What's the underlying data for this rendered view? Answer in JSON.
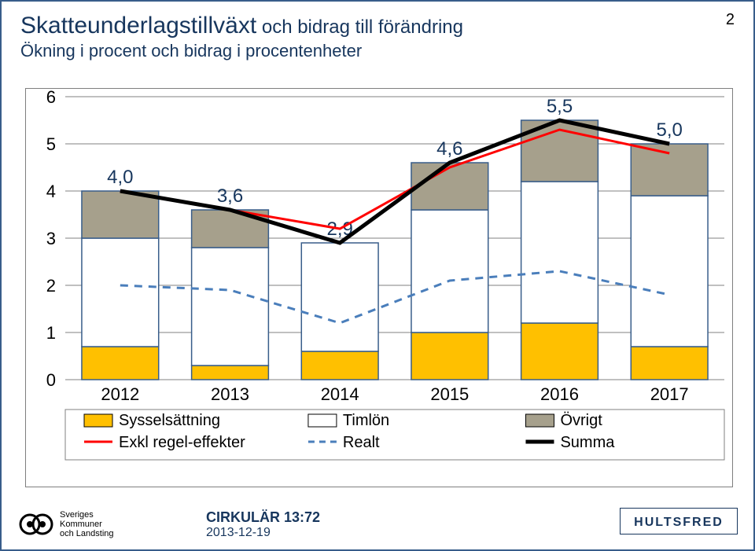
{
  "page_number": "2",
  "title_main": "Skatteunderlagstillväxt",
  "title_rest": " och bidrag till förändring",
  "subtitle": "Ökning i procent och bidrag i procentenheter",
  "footer": {
    "skl_line1": "Sveriges",
    "skl_line2": "Kommuner",
    "skl_line3": "och Landsting",
    "cirk_line1": "CIRKULÄR 13:72",
    "cirk_line2": "2013-12-19",
    "hultsfred": "HULTSFRED"
  },
  "chart": {
    "type": "stacked-bar+lines",
    "categories": [
      "2012",
      "2013",
      "2014",
      "2015",
      "2016",
      "2017"
    ],
    "y": {
      "min": 0,
      "max": 6,
      "ticks": [
        0,
        1,
        2,
        3,
        4,
        5,
        6
      ],
      "tick_fontsize": 22
    },
    "x_tick_fontsize": 22,
    "bar_width": 0.7,
    "series_bars": [
      {
        "name": "Sysselsättning",
        "color": "#ffc000",
        "values": [
          0.7,
          0.3,
          0.6,
          1.0,
          1.2,
          0.7
        ]
      },
      {
        "name": "Timlön",
        "color": "#ffffff",
        "values": [
          2.3,
          2.5,
          2.3,
          2.6,
          3.0,
          3.2
        ]
      },
      {
        "name": "Övrigt",
        "color": "#a6a08c",
        "values": [
          1.0,
          0.8,
          0.0,
          1.0,
          1.3,
          1.1
        ]
      }
    ],
    "bar_border": "#385d8a",
    "bar_border_width": 1.5,
    "series_lines": [
      {
        "name": "Exkl regel-effekter",
        "color": "#ff0000",
        "width": 3,
        "dash": "none",
        "values": [
          4.0,
          3.6,
          3.2,
          4.5,
          5.3,
          4.8
        ]
      },
      {
        "name": "Realt",
        "color": "#4a7ebb",
        "width": 3,
        "dash": "10,8",
        "values": [
          2.0,
          1.9,
          1.2,
          2.1,
          2.3,
          1.8
        ]
      },
      {
        "name": "Summa",
        "color": "#000000",
        "width": 5,
        "dash": "none",
        "values": [
          4.0,
          3.6,
          2.9,
          4.6,
          5.5,
          5.0
        ]
      }
    ],
    "summa_labels": [
      "4,0",
      "3,6",
      "2,9",
      "4,6",
      "5,5",
      "5,0"
    ],
    "label_fontsize": 24,
    "label_color": "#17365d",
    "grid_color": "#808080",
    "grid_width": 1,
    "background": "#ffffff",
    "legend": {
      "fontsize": 20,
      "border": "#808080",
      "items": [
        {
          "label": "Sysselsättning",
          "type": "box",
          "fill": "#ffc000"
        },
        {
          "label": "Timlön",
          "type": "box",
          "fill": "#ffffff"
        },
        {
          "label": "Övrigt",
          "type": "box",
          "fill": "#a6a08c"
        },
        {
          "label": "Exkl regel-effekter",
          "type": "line",
          "color": "#ff0000",
          "dash": "none"
        },
        {
          "label": "Realt",
          "type": "line",
          "color": "#4a7ebb",
          "dash": "8,6"
        },
        {
          "label": "Summa",
          "type": "line",
          "color": "#000000",
          "dash": "none",
          "thick": true
        }
      ]
    }
  }
}
